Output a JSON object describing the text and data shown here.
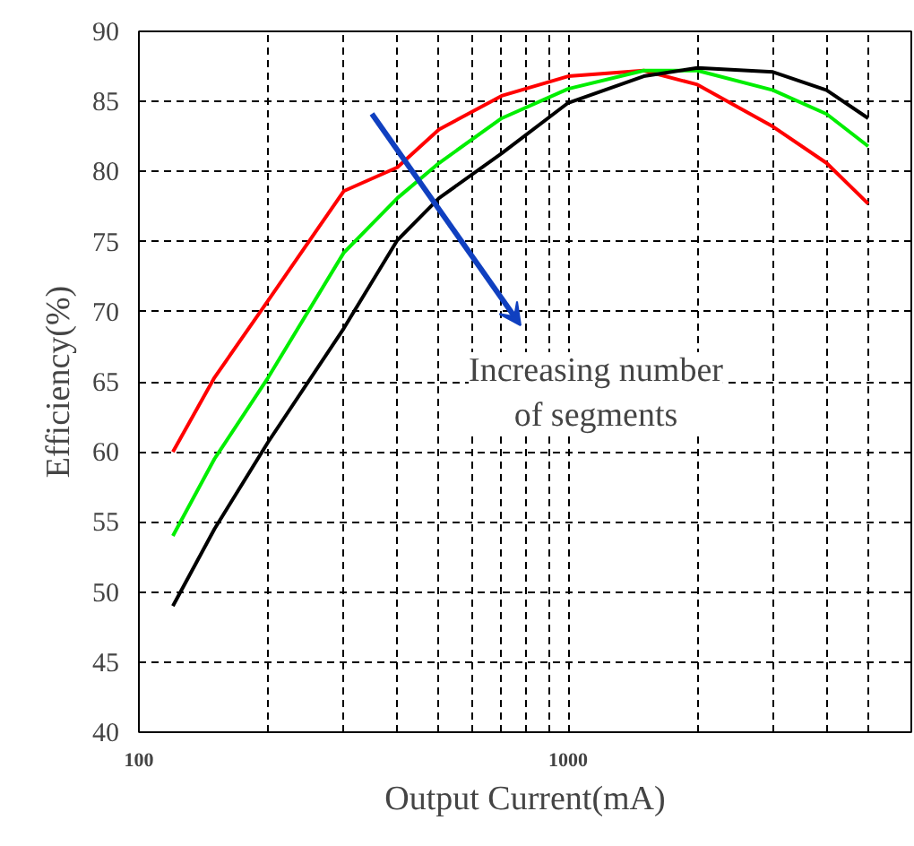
{
  "chart_data": {
    "type": "line",
    "xlabel": "Output Current(mA)",
    "ylabel": "Efficiency(%)",
    "log": "x",
    "grid": true,
    "line_style": "solid",
    "marker": "none",
    "xlim": [
      100,
      6300
    ],
    "ylim": [
      40,
      90
    ],
    "xticks": [
      100,
      {
        "value": 200,
        "label": null
      },
      {
        "value": 300,
        "label": null
      },
      {
        "value": 400,
        "label": null
      },
      {
        "value": 500,
        "label": null
      },
      {
        "value": 600,
        "label": null
      },
      {
        "value": 700,
        "label": null
      },
      {
        "value": 800,
        "label": null
      },
      {
        "value": 900,
        "label": null
      },
      1000,
      {
        "value": 2000,
        "label": null
      },
      {
        "value": 3000,
        "label": null
      },
      {
        "value": 4000,
        "label": null
      },
      {
        "value": 5000,
        "label": null
      }
    ],
    "yticks": [
      40,
      45,
      50,
      55,
      60,
      65,
      70,
      75,
      80,
      85,
      90
    ],
    "x": [
      120,
      150,
      200,
      300,
      400,
      500,
      700,
      1000,
      1500,
      2000,
      3000,
      4000,
      5000
    ],
    "series": [
      {
        "color": "#ff0000",
        "values": [
          60,
          65.3,
          70.8,
          78.6,
          80.3,
          83,
          85.4,
          86.8,
          87.2,
          86.2,
          83.2,
          80.6,
          77.7
        ]
      },
      {
        "color": "#00ee00",
        "values": [
          54,
          59.5,
          65.3,
          74.2,
          78.1,
          80.6,
          83.8,
          85.9,
          87.2,
          87.2,
          85.8,
          84.1,
          81.8
        ]
      },
      {
        "color": "#000000",
        "values": [
          49,
          54.5,
          60.7,
          68.8,
          75.1,
          78.1,
          81.3,
          84.9,
          86.8,
          87.4,
          87.1,
          85.8,
          83.8
        ]
      }
    ],
    "annotations": [
      "Increasing number\nof segments"
    ]
  }
}
